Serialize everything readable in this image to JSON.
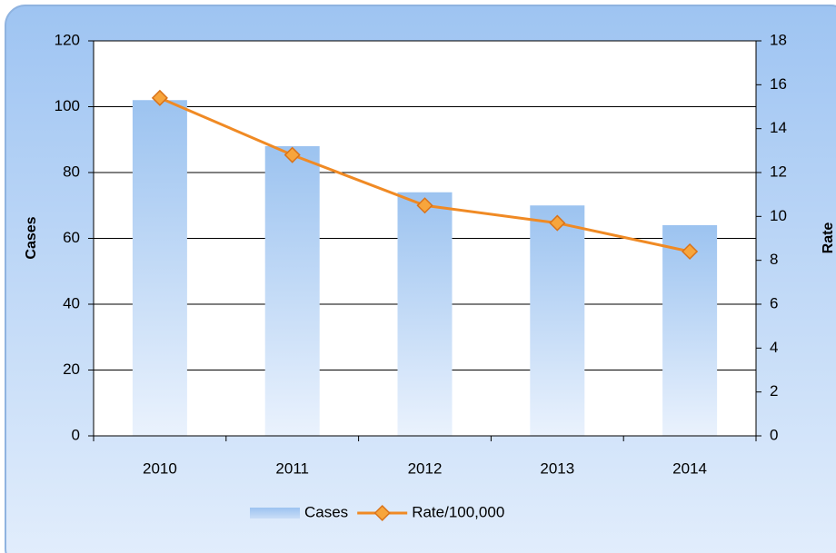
{
  "chart_data": {
    "type": "bar",
    "categories": [
      "2010",
      "2011",
      "2012",
      "2013",
      "2014"
    ],
    "series": [
      {
        "name": "Cases",
        "color": "#9cc3f0",
        "values": [
          102,
          88,
          74,
          70,
          64
        ]
      },
      {
        "name": "Rate/100,000",
        "color": "#f08a24",
        "type": "line",
        "axis": "y2",
        "values": [
          15.4,
          12.8,
          10.5,
          9.7,
          8.4
        ]
      }
    ],
    "y_label": "Cases",
    "y2_label": "Rate",
    "ylim": [
      0,
      120
    ],
    "yticks": [
      0,
      20,
      40,
      60,
      80,
      100,
      120
    ],
    "y2lim": [
      0,
      18
    ],
    "y2ticks": [
      0,
      2,
      4,
      6,
      8,
      10,
      12,
      14,
      16,
      18
    ],
    "grid": true,
    "legend": "bottom"
  }
}
